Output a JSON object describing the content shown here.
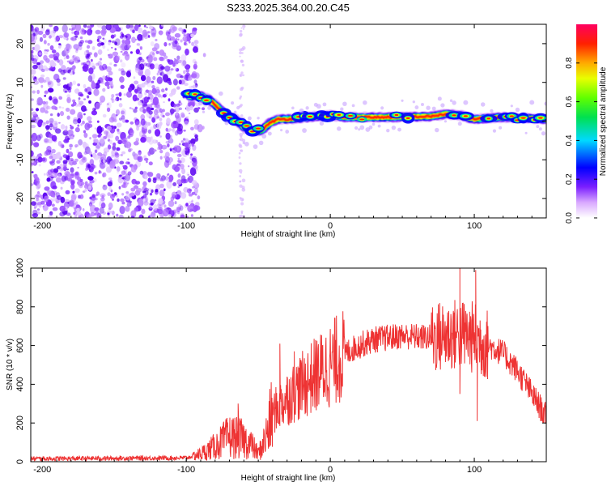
{
  "title": "S233.2025.364.00.20.C45",
  "chart_data": [
    {
      "type": "heatmap",
      "xlabel": "Height of straight line (km)",
      "ylabel": "Frequency (Hz)",
      "xlim": [
        -208,
        150
      ],
      "ylim": [
        -25,
        25
      ],
      "xticks": [
        -200,
        -100,
        0,
        100
      ],
      "xtick_labels": [
        "-200",
        "-100",
        "0",
        "100"
      ],
      "yticks": [
        -20,
        -10,
        0,
        10,
        20
      ],
      "ytick_labels": [
        "-20",
        "-10",
        "0",
        "10",
        "20"
      ],
      "colorbar": {
        "label": "Normalized spectral amplitude",
        "range": [
          0,
          1
        ],
        "ticks": [
          0.0,
          0.2,
          0.4,
          0.6,
          0.8
        ],
        "tick_labels": [
          "0.0",
          "0.2",
          "0.4",
          "0.6",
          "0.8"
        ]
      },
      "ridge": [
        {
          "x": -98,
          "f": 6.5
        },
        {
          "x": -90,
          "f": 6.5
        },
        {
          "x": -84,
          "f": 5.5
        },
        {
          "x": -78,
          "f": 3.5
        },
        {
          "x": -72,
          "f": 1.5
        },
        {
          "x": -66,
          "f": 0.5
        },
        {
          "x": -60,
          "f": -1.5
        },
        {
          "x": -54,
          "f": -2.5
        },
        {
          "x": -48,
          "f": -2.5
        },
        {
          "x": -42,
          "f": -0.5
        },
        {
          "x": -36,
          "f": 0.5
        },
        {
          "x": -30,
          "f": 0.5
        },
        {
          "x": -20,
          "f": 0.8
        },
        {
          "x": -10,
          "f": 1.2
        },
        {
          "x": 0,
          "f": 1.5
        },
        {
          "x": 10,
          "f": 1
        },
        {
          "x": 40,
          "f": 1
        },
        {
          "x": 70,
          "f": 1.2
        },
        {
          "x": 80,
          "f": 1.8
        },
        {
          "x": 90,
          "f": 1.5
        },
        {
          "x": 100,
          "f": 0.5
        },
        {
          "x": 120,
          "f": 1
        },
        {
          "x": 150,
          "f": 0.5
        }
      ]
    },
    {
      "type": "line",
      "series": [
        {
          "name": "SNR",
          "color": "#ee3333"
        }
      ],
      "xlabel": "Height of straight line (km)",
      "ylabel": "SNR (10 * v/v)",
      "xlim": [
        -208,
        150
      ],
      "ylim": [
        0,
        1000
      ],
      "xticks": [
        -200,
        -100,
        0,
        100
      ],
      "xtick_labels": [
        "-200",
        "-100",
        "0",
        "100"
      ],
      "yticks": [
        0,
        200,
        400,
        600,
        800,
        1000
      ],
      "ytick_labels": [
        "0",
        "200",
        "400",
        "600",
        "800",
        "1000"
      ],
      "envelope_x": [
        -208,
        -100,
        -90,
        -80,
        -70,
        -62,
        -55,
        -50,
        -45,
        -40,
        -30,
        -20,
        -10,
        0,
        10,
        20,
        30,
        40,
        50,
        60,
        70,
        80,
        90,
        100,
        110,
        120,
        130,
        140,
        150
      ],
      "envelope_y": [
        15,
        20,
        40,
        80,
        130,
        120,
        90,
        40,
        120,
        250,
        330,
        390,
        450,
        500,
        560,
        600,
        630,
        640,
        650,
        645,
        640,
        650,
        660,
        640,
        600,
        560,
        470,
        350,
        230
      ],
      "peaks": [
        {
          "x": 90,
          "y": 1000
        },
        {
          "x": 101,
          "y": 990
        },
        {
          "x": 102,
          "y": 210
        },
        {
          "x": 90,
          "y": 350
        },
        {
          "x": -35,
          "y": 610
        },
        {
          "x": -25,
          "y": 570
        },
        {
          "x": -64,
          "y": 300
        }
      ]
    }
  ]
}
